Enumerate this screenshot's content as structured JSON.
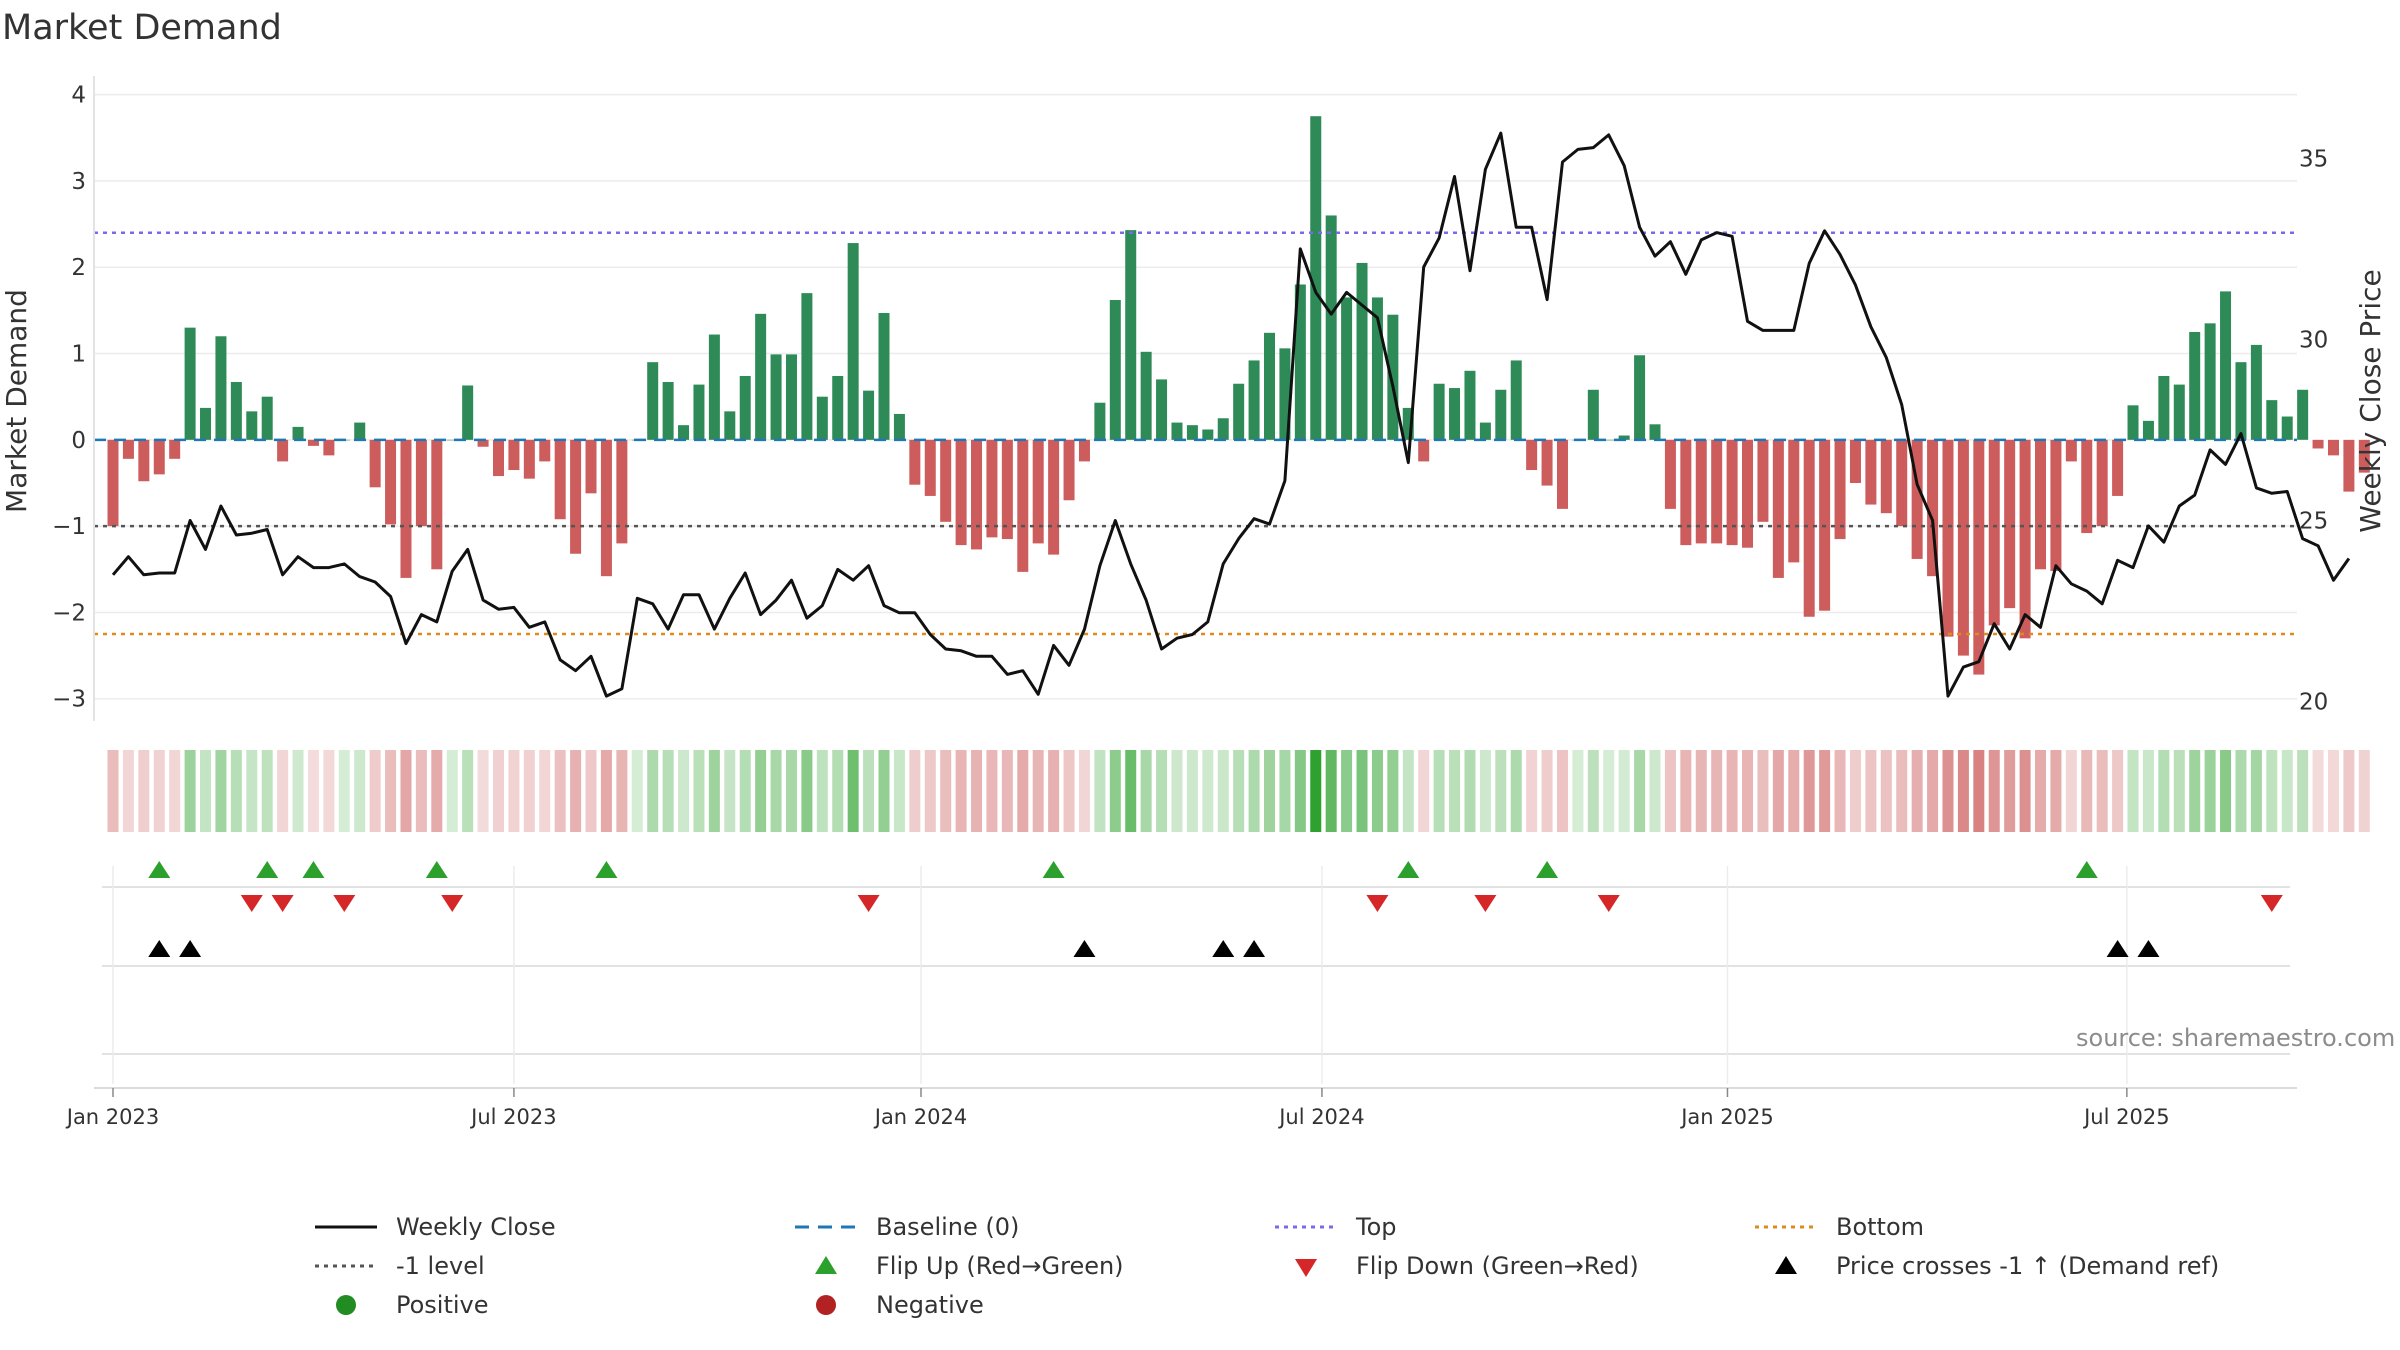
{
  "title": "Market Demand",
  "source": "source: sharemaestro.com",
  "legend": {
    "weekly_close": "Weekly Close",
    "baseline": "Baseline (0)",
    "top": "Top",
    "bottom": "Bottom",
    "minus1": "-1 level",
    "flip_up": "Flip Up (Red→Green)",
    "flip_down": "Flip Down (Green→Red)",
    "cross": "Price crosses -1 ↑ (Demand ref)",
    "positive": "Positive",
    "negative": "Negative"
  },
  "colors": {
    "positive": "#2e8b57",
    "negative": "#cd5c5c",
    "line": "#111111",
    "baseline": "#1f77b4",
    "top": "#7b68ee",
    "bottom": "#e08a1e",
    "minus1": "#555555",
    "flip_up": "#2ca02c",
    "flip_down": "#d62728",
    "cross": "#000000",
    "pos_dot": "#228b22",
    "neg_dot": "#b22222"
  },
  "chart_data": {
    "type": "bar+line",
    "title": "Market Demand",
    "ylabel": "Market Demand",
    "y2label": "Weekly Close Price",
    "ylim": [
      -3.2,
      4.1
    ],
    "y2lim": [
      19.6,
      37.0
    ],
    "yticks": [
      4,
      3,
      2,
      1,
      0,
      -1,
      -2,
      -3
    ],
    "y2ticks": [
      35,
      30,
      25,
      20
    ],
    "ytick_labels": [
      "4",
      "3",
      "2",
      "1",
      "0",
      "−1",
      "−2",
      "−3"
    ],
    "y2tick_labels": [
      "35",
      "30",
      "25",
      "20"
    ],
    "xticks": [
      {
        "label": "Jan 2023",
        "week": 0
      },
      {
        "label": "Jul 2023",
        "week": 26
      },
      {
        "label": "Jan 2024",
        "week": 52.4
      },
      {
        "label": "Jul 2024",
        "week": 78.4
      },
      {
        "label": "Jan 2025",
        "week": 104.7
      },
      {
        "label": "Jul 2025",
        "week": 130.6
      }
    ],
    "x_start_week": -1,
    "x_end_week": 144,
    "top_level": 2.4,
    "bottom_level": -2.25,
    "minus1_level": -1,
    "demand": [
      -1.0,
      -0.22,
      -0.48,
      -0.4,
      -0.22,
      1.3,
      0.37,
      1.2,
      0.67,
      0.33,
      0.5,
      -0.25,
      0.15,
      -0.07,
      -0.18,
      0.0,
      0.2,
      -0.55,
      -0.98,
      -1.6,
      -1.0,
      -1.5,
      0.0,
      0.63,
      -0.08,
      -0.42,
      -0.35,
      -0.45,
      -0.25,
      -0.92,
      -1.32,
      -0.62,
      -1.58,
      -1.2,
      0.0,
      0.9,
      0.67,
      0.17,
      0.64,
      1.22,
      0.33,
      0.74,
      1.46,
      0.99,
      0.99,
      1.7,
      0.5,
      0.74,
      2.28,
      0.57,
      1.47,
      0.3,
      -0.52,
      -0.65,
      -0.95,
      -1.22,
      -1.27,
      -1.13,
      -1.15,
      -1.53,
      -1.2,
      -1.33,
      -0.7,
      -0.25,
      0.43,
      1.62,
      2.43,
      1.02,
      0.7,
      0.2,
      0.17,
      0.12,
      0.25,
      0.65,
      0.92,
      1.24,
      1.06,
      1.8,
      3.75,
      2.6,
      1.65,
      2.05,
      1.65,
      1.45,
      0.37,
      -0.25,
      0.65,
      0.6,
      0.8,
      0.2,
      0.58,
      0.92,
      -0.35,
      -0.53,
      -0.8,
      0.0,
      0.58,
      0.0,
      0.05,
      0.98,
      0.18,
      -0.8,
      -1.22,
      -1.2,
      -1.2,
      -1.22,
      -1.25,
      -0.95,
      -1.6,
      -1.42,
      -2.05,
      -1.98,
      -1.15,
      -0.5,
      -0.75,
      -0.85,
      -1.0,
      -1.38,
      -1.58,
      -2.28,
      -2.5,
      -2.72,
      -2.15,
      -1.95,
      -2.3,
      -1.5,
      -1.52,
      -0.25,
      -1.08,
      -1.0,
      -0.65,
      0.4,
      0.22,
      0.74,
      0.64,
      1.25,
      1.35,
      1.72,
      0.9,
      1.1,
      0.46,
      0.27,
      0.58,
      -0.1,
      -0.18,
      -0.6,
      -0.38
    ],
    "weekly_close": [
      23.5,
      24.0,
      23.5,
      23.55,
      23.55,
      25.0,
      24.2,
      25.4,
      24.6,
      24.65,
      24.75,
      23.5,
      24.0,
      23.7,
      23.7,
      23.8,
      23.45,
      23.3,
      22.9,
      21.6,
      22.4,
      22.2,
      23.6,
      24.2,
      22.8,
      22.55,
      22.6,
      22.05,
      22.2,
      21.15,
      20.85,
      21.25,
      20.15,
      20.35,
      22.85,
      22.7,
      22.0,
      22.95,
      22.95,
      22.0,
      22.85,
      23.55,
      22.4,
      22.8,
      23.35,
      22.3,
      22.65,
      23.65,
      23.35,
      23.75,
      22.65,
      22.45,
      22.45,
      21.85,
      21.45,
      21.4,
      21.25,
      21.25,
      20.75,
      20.85,
      20.2,
      21.55,
      21.0,
      22.0,
      23.75,
      25.0,
      23.8,
      22.8,
      21.45,
      21.75,
      21.85,
      22.2,
      23.8,
      24.5,
      25.05,
      24.9,
      26.1,
      32.5,
      31.3,
      30.7,
      31.3,
      30.95,
      30.6,
      28.7,
      26.6,
      32.0,
      32.8,
      34.5,
      31.9,
      34.7,
      35.7,
      33.1,
      33.1,
      31.1,
      34.9,
      35.25,
      35.3,
      35.65,
      34.8,
      33.1,
      32.3,
      32.7,
      31.8,
      32.75,
      32.95,
      32.85,
      30.5,
      30.25,
      30.25,
      30.25,
      32.1,
      33.0,
      32.35,
      31.5,
      30.35,
      29.5,
      28.2,
      26.0,
      25.0,
      20.15,
      20.95,
      21.1,
      22.15,
      21.45,
      22.4,
      22.05,
      23.75,
      23.25,
      23.05,
      22.7,
      23.9,
      23.7,
      24.85,
      24.4,
      25.4,
      25.7,
      26.95,
      26.55,
      27.4,
      25.9,
      25.75,
      25.8,
      24.5,
      24.3,
      23.35,
      23.95
    ],
    "flip_up_weeks": [
      3,
      10,
      13,
      21,
      32,
      61,
      84,
      93,
      128
    ],
    "flip_down_weeks": [
      9,
      11,
      15,
      22,
      49,
      82,
      89,
      97,
      140
    ],
    "price_cross_weeks": [
      3,
      5,
      63,
      72,
      74,
      130,
      132
    ],
    "heatstrip_scale": "green = positive demand, red = negative demand, intensity = magnitude"
  }
}
